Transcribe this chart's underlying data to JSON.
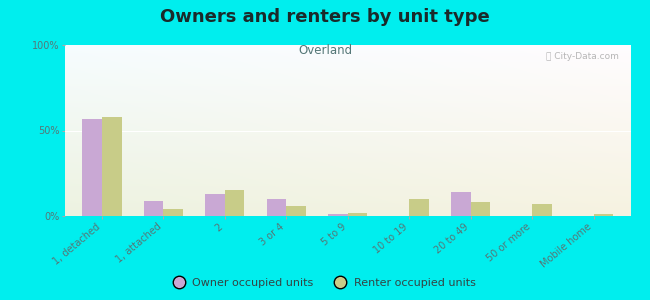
{
  "title": "Owners and renters by unit type",
  "subtitle": "Overland",
  "categories": [
    "1, detached",
    "1, attached",
    "2",
    "3 or 4",
    "5 to 9",
    "10 to 19",
    "20 to 49",
    "50 or more",
    "Mobile home"
  ],
  "owner_values": [
    57,
    9,
    13,
    10,
    1,
    0,
    14,
    0,
    0
  ],
  "renter_values": [
    58,
    4,
    15,
    6,
    2,
    10,
    8,
    7,
    1
  ],
  "owner_color": "#c9a8d4",
  "renter_color": "#c8cc88",
  "background_top_left": "#e8f0d8",
  "background_top_right": "#f8faf4",
  "background_bottom": "#f0f4e4",
  "outer_bg": "#00eeee",
  "ylim": [
    0,
    100
  ],
  "yticks": [
    0,
    50,
    100
  ],
  "ytick_labels": [
    "0%",
    "50%",
    "100%"
  ],
  "bar_width": 0.32,
  "title_fontsize": 13,
  "subtitle_fontsize": 8.5,
  "legend_fontsize": 8,
  "tick_fontsize": 7
}
